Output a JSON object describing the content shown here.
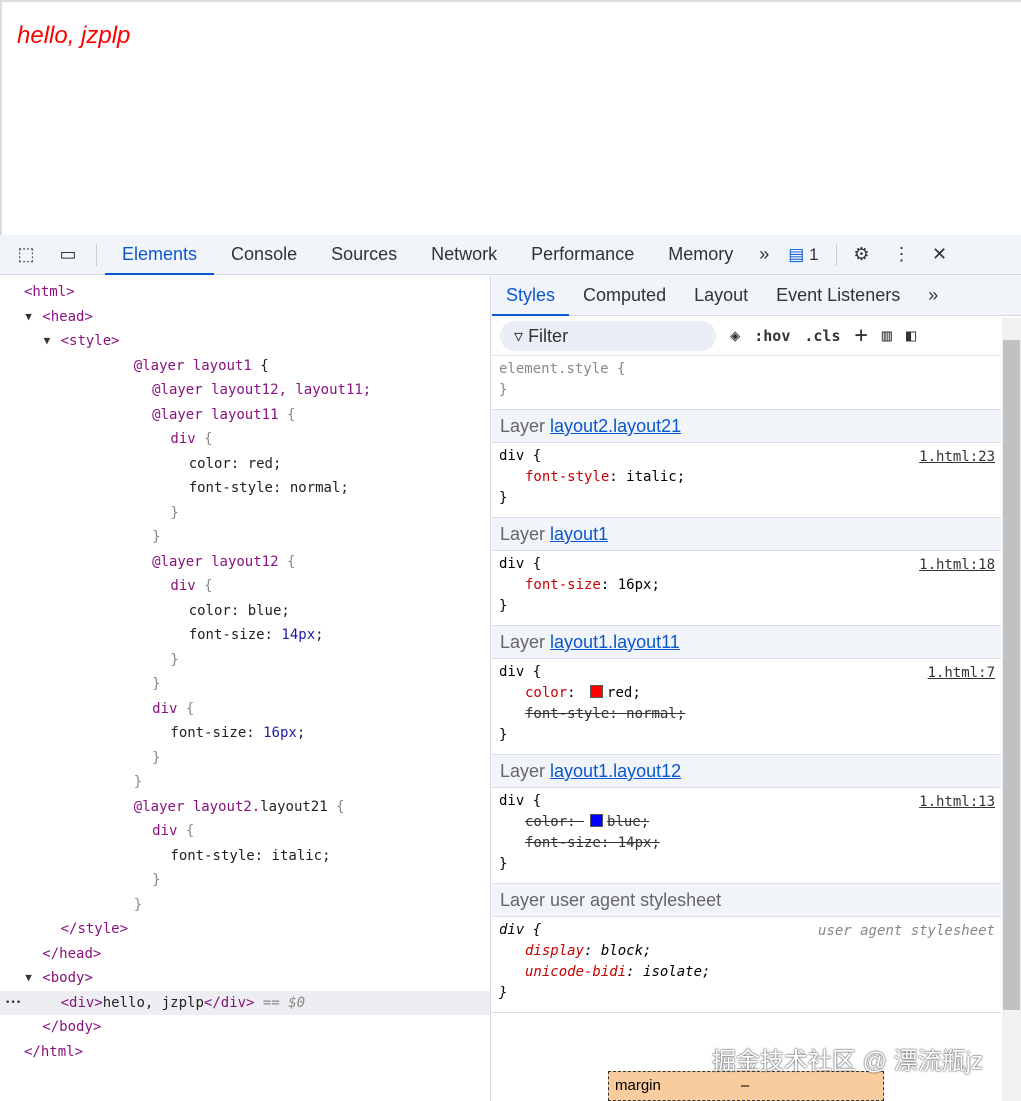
{
  "page": {
    "text": "hello, jzplp"
  },
  "toolbar": {
    "tabs": [
      "Elements",
      "Console",
      "Sources",
      "Network",
      "Performance",
      "Memory"
    ],
    "active": "Elements",
    "issues_count": "1"
  },
  "dom": [
    {
      "depth": 0,
      "tri": "",
      "tokens": [
        [
          "tag",
          "<html>"
        ]
      ]
    },
    {
      "depth": 1,
      "tri": "▼",
      "tokens": [
        [
          "tag",
          "<head>"
        ]
      ]
    },
    {
      "depth": 2,
      "tri": "▼",
      "tokens": [
        [
          "tag",
          "<style>"
        ]
      ]
    },
    {
      "depth": 6,
      "tokens": [
        [
          "at",
          "@layer layout1"
        ],
        [
          "txt",
          " {"
        ]
      ]
    },
    {
      "depth": 7,
      "tokens": [
        [
          "at",
          "@layer layout12, layout11;"
        ]
      ]
    },
    {
      "depth": 7,
      "tokens": [
        [
          "at",
          "@layer layout11"
        ],
        [
          "gray",
          " {"
        ]
      ]
    },
    {
      "depth": 8,
      "tokens": [
        [
          "at",
          "div"
        ],
        [
          "gray",
          " {"
        ]
      ]
    },
    {
      "depth": 9,
      "tokens": [
        [
          "txt",
          "color: red;"
        ]
      ]
    },
    {
      "depth": 9,
      "tokens": [
        [
          "txt",
          "font-style: normal;"
        ]
      ]
    },
    {
      "depth": 8,
      "tokens": [
        [
          "gray",
          "}"
        ]
      ]
    },
    {
      "depth": 7,
      "tokens": [
        [
          "gray",
          "}"
        ]
      ]
    },
    {
      "depth": 7,
      "tokens": [
        [
          "at",
          "@layer layout12"
        ],
        [
          "gray",
          " {"
        ]
      ]
    },
    {
      "depth": 8,
      "tokens": [
        [
          "at",
          "div"
        ],
        [
          "gray",
          " {"
        ]
      ]
    },
    {
      "depth": 9,
      "tokens": [
        [
          "txt",
          "color: blue;"
        ]
      ]
    },
    {
      "depth": 9,
      "tokens": [
        [
          "txt",
          "font-size: "
        ],
        [
          "num",
          "14px"
        ],
        [
          "txt",
          ";"
        ]
      ]
    },
    {
      "depth": 8,
      "tokens": [
        [
          "gray",
          "}"
        ]
      ]
    },
    {
      "depth": 7,
      "tokens": [
        [
          "gray",
          "}"
        ]
      ]
    },
    {
      "depth": 7,
      "tokens": [
        [
          "at",
          "div"
        ],
        [
          "gray",
          " {"
        ]
      ]
    },
    {
      "depth": 8,
      "tokens": [
        [
          "txt",
          "font-size: "
        ],
        [
          "num",
          "16px"
        ],
        [
          "txt",
          ";"
        ]
      ]
    },
    {
      "depth": 7,
      "tokens": [
        [
          "gray",
          "}"
        ]
      ]
    },
    {
      "depth": 6,
      "tokens": [
        [
          "gray",
          "}"
        ]
      ]
    },
    {
      "depth": 6,
      "tokens": [
        [
          "at",
          "@layer layout2."
        ],
        [
          "txt",
          "layout21"
        ],
        [
          "gray",
          " {"
        ]
      ]
    },
    {
      "depth": 7,
      "tokens": [
        [
          "at",
          "div"
        ],
        [
          "gray",
          " {"
        ]
      ]
    },
    {
      "depth": 8,
      "tokens": [
        [
          "txt",
          "font-style: italic;"
        ]
      ]
    },
    {
      "depth": 7,
      "tokens": [
        [
          "gray",
          "}"
        ]
      ]
    },
    {
      "depth": 6,
      "tokens": [
        [
          "gray",
          "}"
        ]
      ]
    },
    {
      "depth": 2,
      "tokens": [
        [
          "tag",
          "</style>"
        ]
      ]
    },
    {
      "depth": 1,
      "tokens": [
        [
          "tag",
          "</head>"
        ]
      ]
    },
    {
      "depth": 1,
      "tri": "▼",
      "tokens": [
        [
          "tag",
          "<body>"
        ]
      ]
    },
    {
      "depth": 2,
      "selected": true,
      "tokens": [
        [
          "tag",
          "<div>"
        ],
        [
          "txt",
          "hello, jzplp"
        ],
        [
          "tag",
          "</div>"
        ],
        [
          "gray",
          " == $0"
        ]
      ]
    },
    {
      "depth": 1,
      "tokens": [
        [
          "tag",
          "</body>"
        ]
      ]
    },
    {
      "depth": 0,
      "tokens": [
        [
          "tag",
          "</html>"
        ]
      ]
    }
  ],
  "styles": {
    "tabs": [
      "Styles",
      "Computed",
      "Layout",
      "Event Listeners"
    ],
    "filter_placeholder": "Filter",
    "hov": ":hov",
    "cls": ".cls",
    "element_style": [
      "element.style {",
      "}"
    ],
    "layers": [
      {
        "prefix": "Layer ",
        "name": "layout2.layout21",
        "selector": "div {",
        "source": "1.html:23",
        "props": [
          {
            "n": "font-style",
            "v": "italic",
            "struck": false
          }
        ]
      },
      {
        "prefix": "Layer ",
        "name": "layout1",
        "selector": "div {",
        "source": "1.html:18",
        "props": [
          {
            "n": "font-size",
            "v": "16px",
            "struck": false
          }
        ]
      },
      {
        "prefix": "Layer ",
        "name": "layout1.layout11",
        "selector": "div {",
        "source": "1.html:7",
        "props": [
          {
            "n": "color",
            "v": "red",
            "swatch": "#ff0000",
            "struck": false
          },
          {
            "n": "font-style",
            "v": "normal",
            "struck": true
          }
        ]
      },
      {
        "prefix": "Layer ",
        "name": "layout1.layout12",
        "selector": "div {",
        "source": "1.html:13",
        "props": [
          {
            "n": "color",
            "v": "blue",
            "swatch": "#0000ff",
            "struck": true
          },
          {
            "n": "font-size",
            "v": "14px",
            "struck": true
          }
        ]
      }
    ],
    "ua": {
      "header": "Layer user agent stylesheet",
      "selector": "div {",
      "source": "user agent stylesheet",
      "props": [
        {
          "n": "display",
          "v": "block"
        },
        {
          "n": "unicode-bidi",
          "v": "isolate"
        }
      ]
    },
    "boxmodel": {
      "label": "margin",
      "value": "–"
    }
  },
  "watermark": "掘金技术社区 @ 漂流瓶jz"
}
